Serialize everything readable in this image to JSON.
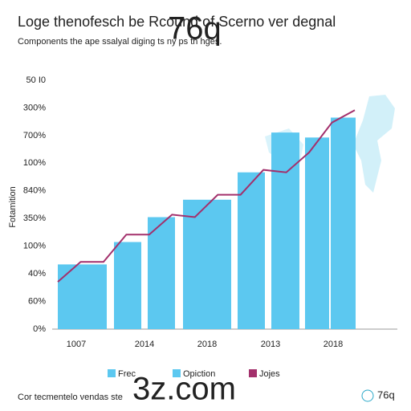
{
  "chart_data": {
    "type": "bar_line",
    "title": "Loge thenofesch be Rcound of Scerno ver degnal",
    "subtitle": "Components the ape ssalyal diging ts ny ps th hges.",
    "y_label": "Fotamition",
    "y_tick_labels": [
      "50 I0",
      "300%",
      "700%",
      "100%",
      "840%",
      "350%",
      "100%",
      "40%",
      "60%",
      "0%"
    ],
    "x_labels": [
      "1007",
      "2014",
      "2018",
      "2013",
      "2018"
    ],
    "ylim": [
      0,
      100
    ],
    "bar_color": "#5cc8f0",
    "line_color": "#a3306c",
    "bar_values": [
      26,
      35,
      45,
      52,
      63,
      79,
      77,
      85
    ],
    "line_values": [
      19,
      27,
      27,
      38,
      38,
      46,
      45,
      54,
      54,
      64,
      63,
      71,
      83,
      88
    ],
    "legend": [
      {
        "name": "Frec",
        "color": "#5cc8f0"
      },
      {
        "name": "Opiction",
        "color": "#5cc8f0"
      },
      {
        "name": "Jojes",
        "color": "#a3306c"
      }
    ]
  },
  "footer": "Cor tecmentelo vendas ste",
  "watermarks": [
    "76q",
    "3z.com",
    "76q"
  ]
}
